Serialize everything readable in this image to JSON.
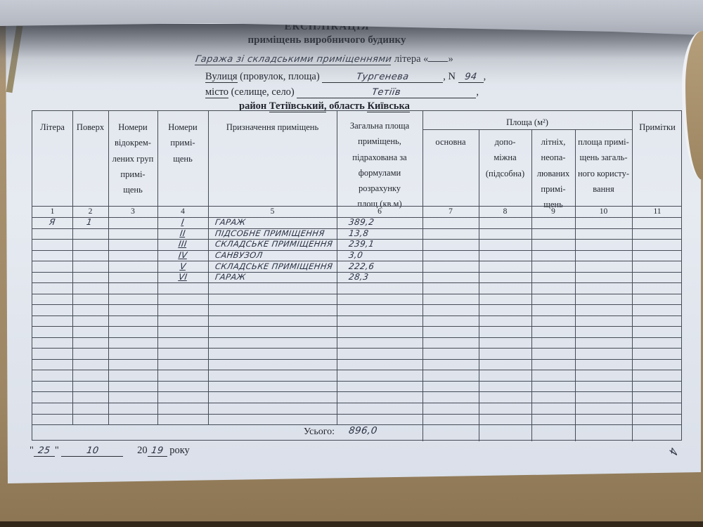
{
  "colors": {
    "paper": "#e3e7ee",
    "cardboard": "#a68f6c",
    "ink": "#2a3142",
    "print_text": "#23262e",
    "table_line": "#454b55"
  },
  "header": {
    "title_line1": "ЕКСПЛІКАЦІЯ",
    "title_line2": "приміщень виробничого будинку",
    "object_value": "Гаража зі складськими приміщеннями",
    "litera_prefix": "літера «",
    "litera_suffix": "»",
    "street": {
      "label_underlined": "Вулиця",
      "label_rest": " (провулок, площа)",
      "value": "Тургенева",
      "n_label": ", N",
      "number": "94",
      "tail": ","
    },
    "city": {
      "label_underlined": "місто",
      "label_rest": " (селище, село)",
      "value": "Тетіїв",
      "tail": ","
    },
    "region": {
      "prefix": "район",
      "district": "Тетіївський,",
      "middle": "область",
      "oblast": "Київська"
    }
  },
  "table": {
    "col_headers": {
      "c1": "Літера",
      "c2": "Поверх",
      "c3": "Номери\nвідокрем-\nлених груп\nпримі-\nщень",
      "c4": "Номери\nпримі-\nщень",
      "c5": "Призначення приміщень",
      "c6": "Загальна площа\nприміщень,\nпідрахована за\nформулами розрахунку\nплощ (кв.м)",
      "group": "Площа (м²)",
      "c7": "основна",
      "c8": "допо-\nміжна\n(підсобна)",
      "c9": "літніх,\nнеопа-\nлюваних\nпримі-\nщень",
      "c10": "площа примі-\nщень загаль-\nного користу-\nвання",
      "c11": "Примітки"
    },
    "column_numbers": [
      "1",
      "2",
      "3",
      "4",
      "5",
      "6",
      "7",
      "8",
      "9",
      "10",
      "11"
    ],
    "rows": [
      {
        "litera": "Я",
        "floor": "1",
        "num": "I",
        "purpose": "ГАРАЖ",
        "area": "389,2"
      },
      {
        "litera": "",
        "floor": "",
        "num": "II",
        "purpose": "ПІДСОБНЕ ПРИМІЩЕННЯ",
        "area": "13,8"
      },
      {
        "litera": "",
        "floor": "",
        "num": "III",
        "purpose": "СКЛАДСЬКЕ ПРИМІЩЕННЯ",
        "area": "239,1"
      },
      {
        "litera": "",
        "floor": "",
        "num": "IV",
        "purpose": "САНВУЗОЛ",
        "area": "3,0"
      },
      {
        "litera": "",
        "floor": "",
        "num": "V",
        "purpose": "СКЛАДСЬКЕ ПРИМІЩЕННЯ",
        "area": "222,6"
      },
      {
        "litera": "",
        "floor": "",
        "num": "VI",
        "purpose": "ГАРАЖ",
        "area": "28,3"
      }
    ],
    "total_label": "Усього:",
    "total_value": "896,0"
  },
  "footer": {
    "quote": "\"",
    "day": "25",
    "month": "10",
    "century": "20",
    "year": "19",
    "suffix": "року"
  },
  "page_number": "4"
}
